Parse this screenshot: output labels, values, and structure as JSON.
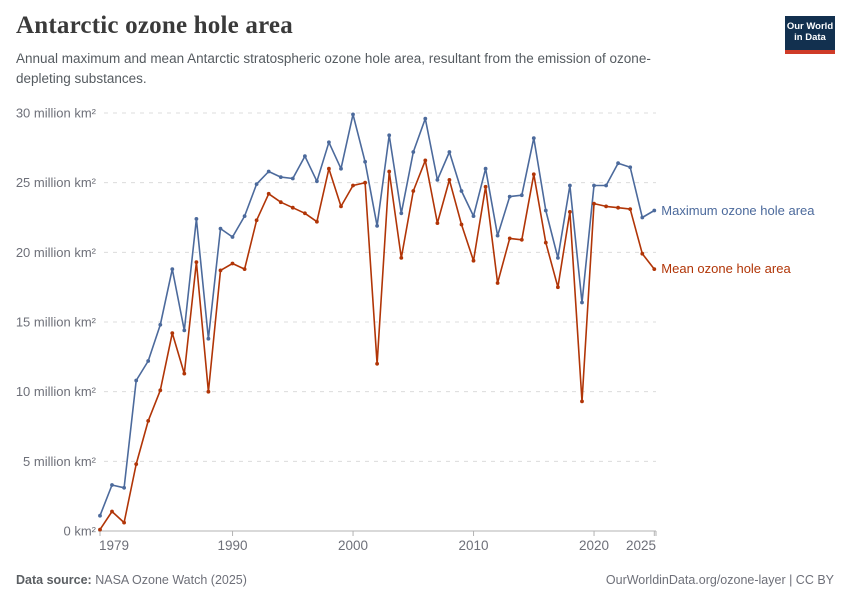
{
  "header": {
    "title": "Antarctic ozone hole area",
    "subtitle": "Annual maximum and mean Antarctic stratospheric ozone hole area, resultant from the emission of ozone-depleting substances."
  },
  "logo": {
    "line1": "Our World",
    "line2": "in Data",
    "bg_color": "#12304f",
    "accent_color": "#cf3b28"
  },
  "chart_data": {
    "type": "line",
    "title": "Antarctic ozone hole area",
    "unit": "million km²",
    "grid": "horizontal dashed",
    "legend_position": "right-of-line-ends",
    "xlim": [
      1979,
      2025
    ],
    "ylim": [
      0,
      30
    ],
    "x": [
      1979,
      1980,
      1981,
      1982,
      1983,
      1984,
      1985,
      1986,
      1987,
      1988,
      1989,
      1990,
      1991,
      1992,
      1993,
      1994,
      1995,
      1996,
      1997,
      1998,
      1999,
      2000,
      2001,
      2002,
      2003,
      2004,
      2005,
      2006,
      2007,
      2008,
      2009,
      2010,
      2011,
      2012,
      2013,
      2014,
      2015,
      2016,
      2017,
      2018,
      2019,
      2020,
      2021,
      2022,
      2023,
      2024,
      2025
    ],
    "series": [
      {
        "name": "Maximum ozone hole area",
        "color": "#4C6A9C",
        "values": [
          1.1,
          3.3,
          3.1,
          10.8,
          12.2,
          14.8,
          18.8,
          14.4,
          22.4,
          13.8,
          21.7,
          21.1,
          22.6,
          24.9,
          25.8,
          25.4,
          25.3,
          26.9,
          25.1,
          27.9,
          26.0,
          29.9,
          26.5,
          21.9,
          28.4,
          22.8,
          27.2,
          29.6,
          25.2,
          27.2,
          24.4,
          22.6,
          26.0,
          21.2,
          24.0,
          24.1,
          28.2,
          23.0,
          19.6,
          24.8,
          16.4,
          24.8,
          24.8,
          26.4,
          26.1,
          22.5,
          23.0
        ]
      },
      {
        "name": "Mean ozone hole area",
        "color": "#B13507",
        "values": [
          0.1,
          1.4,
          0.6,
          4.8,
          7.9,
          10.1,
          14.2,
          11.3,
          19.3,
          10.0,
          18.7,
          19.2,
          18.8,
          22.3,
          24.2,
          23.6,
          23.2,
          22.8,
          22.2,
          26.0,
          23.3,
          24.8,
          25.0,
          12.0,
          25.8,
          19.6,
          24.4,
          26.6,
          22.1,
          25.2,
          22.0,
          19.4,
          24.7,
          17.8,
          21.0,
          20.9,
          25.6,
          20.7,
          17.5,
          22.9,
          9.3,
          23.5,
          23.3,
          23.2,
          23.1,
          19.9,
          18.8
        ]
      }
    ],
    "ytick_values": [
      0,
      5,
      10,
      15,
      20,
      25,
      30
    ],
    "ytick_labels": [
      "0 km²",
      "5 million km²",
      "10 million km²",
      "15 million km²",
      "20 million km²",
      "25 million km²",
      "30 million km²"
    ],
    "xtick_values": [
      1979,
      1990,
      2000,
      2010,
      2020,
      2025
    ],
    "xtick_labels": [
      "1979",
      "1990",
      "2000",
      "2010",
      "2020",
      "2025"
    ]
  },
  "footer": {
    "source_label": "Data source:",
    "source_value": "NASA Ozone Watch (2025)",
    "right_text": "OurWorldinData.org/ozone-layer | CC BY"
  }
}
